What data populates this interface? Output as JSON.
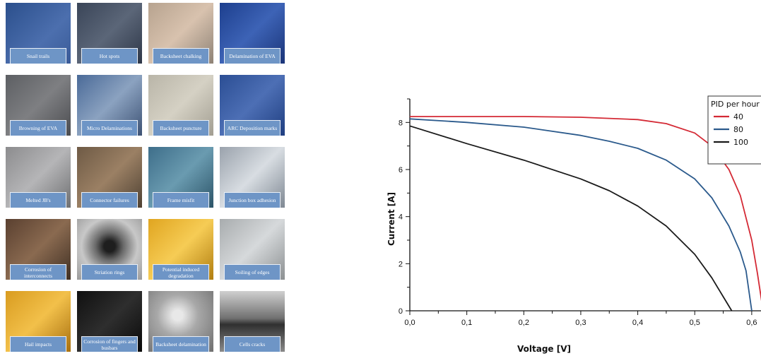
{
  "tiles": [
    {
      "caption": "Snail trails",
      "bg": "linear-gradient(135deg,#2b4f8c,#4c6fae 60%,#3a5b98)"
    },
    {
      "caption": "Hot spots",
      "bg": "linear-gradient(135deg,#3a4558,#5b6678 50%,#2e3748)"
    },
    {
      "caption": "Backsheet chalking",
      "bg": "linear-gradient(135deg,#b7a38f,#d8c2ae 50%,#8e8276)"
    },
    {
      "caption": "Delamination of EVA",
      "bg": "linear-gradient(135deg,#1d3f8e,#3d63b6 50%,#1a3478)"
    },
    {
      "caption": "Browning of EVA",
      "bg": "linear-gradient(135deg,#5d5f63,#7e7f82 50%,#4b4c50)"
    },
    {
      "caption": "Micro Delaminations",
      "bg": "linear-gradient(135deg,#4a6a98,#8ba2c0 50%,#3d5274)"
    },
    {
      "caption": "Backsheet puncture",
      "bg": "linear-gradient(135deg,#b9b5a8,#d5d1c4 50%,#a29e92)"
    },
    {
      "caption": "ARC Deposition marks",
      "bg": "linear-gradient(135deg,#2b4e94,#4d6fb5 50%,#1f3e80)"
    },
    {
      "caption": "Melted JB's",
      "bg": "linear-gradient(135deg,#8c8c8e,#b5b5b7 50%,#6f7072)"
    },
    {
      "caption": "Connector failures",
      "bg": "linear-gradient(135deg,#6e5a45,#9b8064 50%,#4e4133)"
    },
    {
      "caption": "Frame misfit",
      "bg": "linear-gradient(135deg,#3e6e8a,#6a9bb0 50%,#2c5468)"
    },
    {
      "caption": "Junction box adhesion",
      "bg": "linear-gradient(135deg,#9aa2ac,#d8dde2 50%,#7f8893)"
    },
    {
      "caption": "Corrosion of interconnects",
      "bg": "linear-gradient(135deg,#5a4030,#8a6a50 50%,#403024)"
    },
    {
      "caption": "Striation rings",
      "bg": "radial-gradient(circle at 50% 45%,#1e1e1e 12%,#6a6a6a 30%,#c8c8c8 60%,#9a9a9a)"
    },
    {
      "caption": "Potential induced degradation",
      "bg": "linear-gradient(135deg,#e0a520,#f6cc55 50%,#b07d10)"
    },
    {
      "caption": "Soiling of edges",
      "bg": "linear-gradient(135deg,#a8acae,#d6d9db 50%,#8c9092)"
    },
    {
      "caption": "Hail impacts",
      "bg": "linear-gradient(135deg,#d99c20,#f2c04a 50%,#a87010)"
    },
    {
      "caption": "Corrosion of fingers and busbars",
      "bg": "linear-gradient(135deg,#101010,#2e2e2e 50%,#0a0a0a)"
    },
    {
      "caption": "Backsheet delamination",
      "bg": "radial-gradient(circle at 45% 40%,#e8e8e8 10%,#a8a8a8 40%,#6e6e6e)"
    },
    {
      "caption": "Cells cracks",
      "bg": "linear-gradient(180deg,#d0d0d0,#707070 45%,#303030 55%,#8a8a8a)"
    }
  ],
  "chart_data": {
    "type": "line",
    "xlabel": "Voltage [V]",
    "ylabel": "Current [A]",
    "xlim": [
      0,
      0.62
    ],
    "ylim": [
      0,
      9
    ],
    "xticks": [
      "0,0",
      "0,1",
      "0,2",
      "0,3",
      "0,4",
      "0,5",
      "0,6"
    ],
    "xtick_values": [
      0,
      0.1,
      0.2,
      0.3,
      0.4,
      0.5,
      0.6
    ],
    "yticks": [
      "0",
      "2",
      "4",
      "6",
      "8"
    ],
    "ytick_values": [
      0,
      2,
      4,
      6,
      8
    ],
    "legend_title": "PID per hour",
    "legend_position": "top-right",
    "series": [
      {
        "name": "40",
        "color": "#d42a35",
        "x": [
          0,
          0.1,
          0.2,
          0.3,
          0.4,
          0.45,
          0.5,
          0.53,
          0.56,
          0.58,
          0.6,
          0.61,
          0.62
        ],
        "y": [
          8.25,
          8.25,
          8.25,
          8.22,
          8.12,
          7.95,
          7.55,
          7.0,
          6.0,
          4.9,
          3.0,
          1.6,
          0
        ]
      },
      {
        "name": "80",
        "color": "#2b5a8c",
        "x": [
          0,
          0.1,
          0.2,
          0.3,
          0.35,
          0.4,
          0.45,
          0.5,
          0.53,
          0.56,
          0.58,
          0.59,
          0.6
        ],
        "y": [
          8.15,
          8.0,
          7.8,
          7.45,
          7.2,
          6.9,
          6.4,
          5.6,
          4.8,
          3.6,
          2.5,
          1.7,
          0
        ]
      },
      {
        "name": "100",
        "color": "#1a1a1a",
        "x": [
          0,
          0.1,
          0.2,
          0.3,
          0.35,
          0.4,
          0.45,
          0.5,
          0.53,
          0.55,
          0.565
        ],
        "y": [
          7.85,
          7.1,
          6.4,
          5.6,
          5.1,
          4.45,
          3.6,
          2.4,
          1.4,
          0.6,
          0
        ]
      }
    ]
  }
}
